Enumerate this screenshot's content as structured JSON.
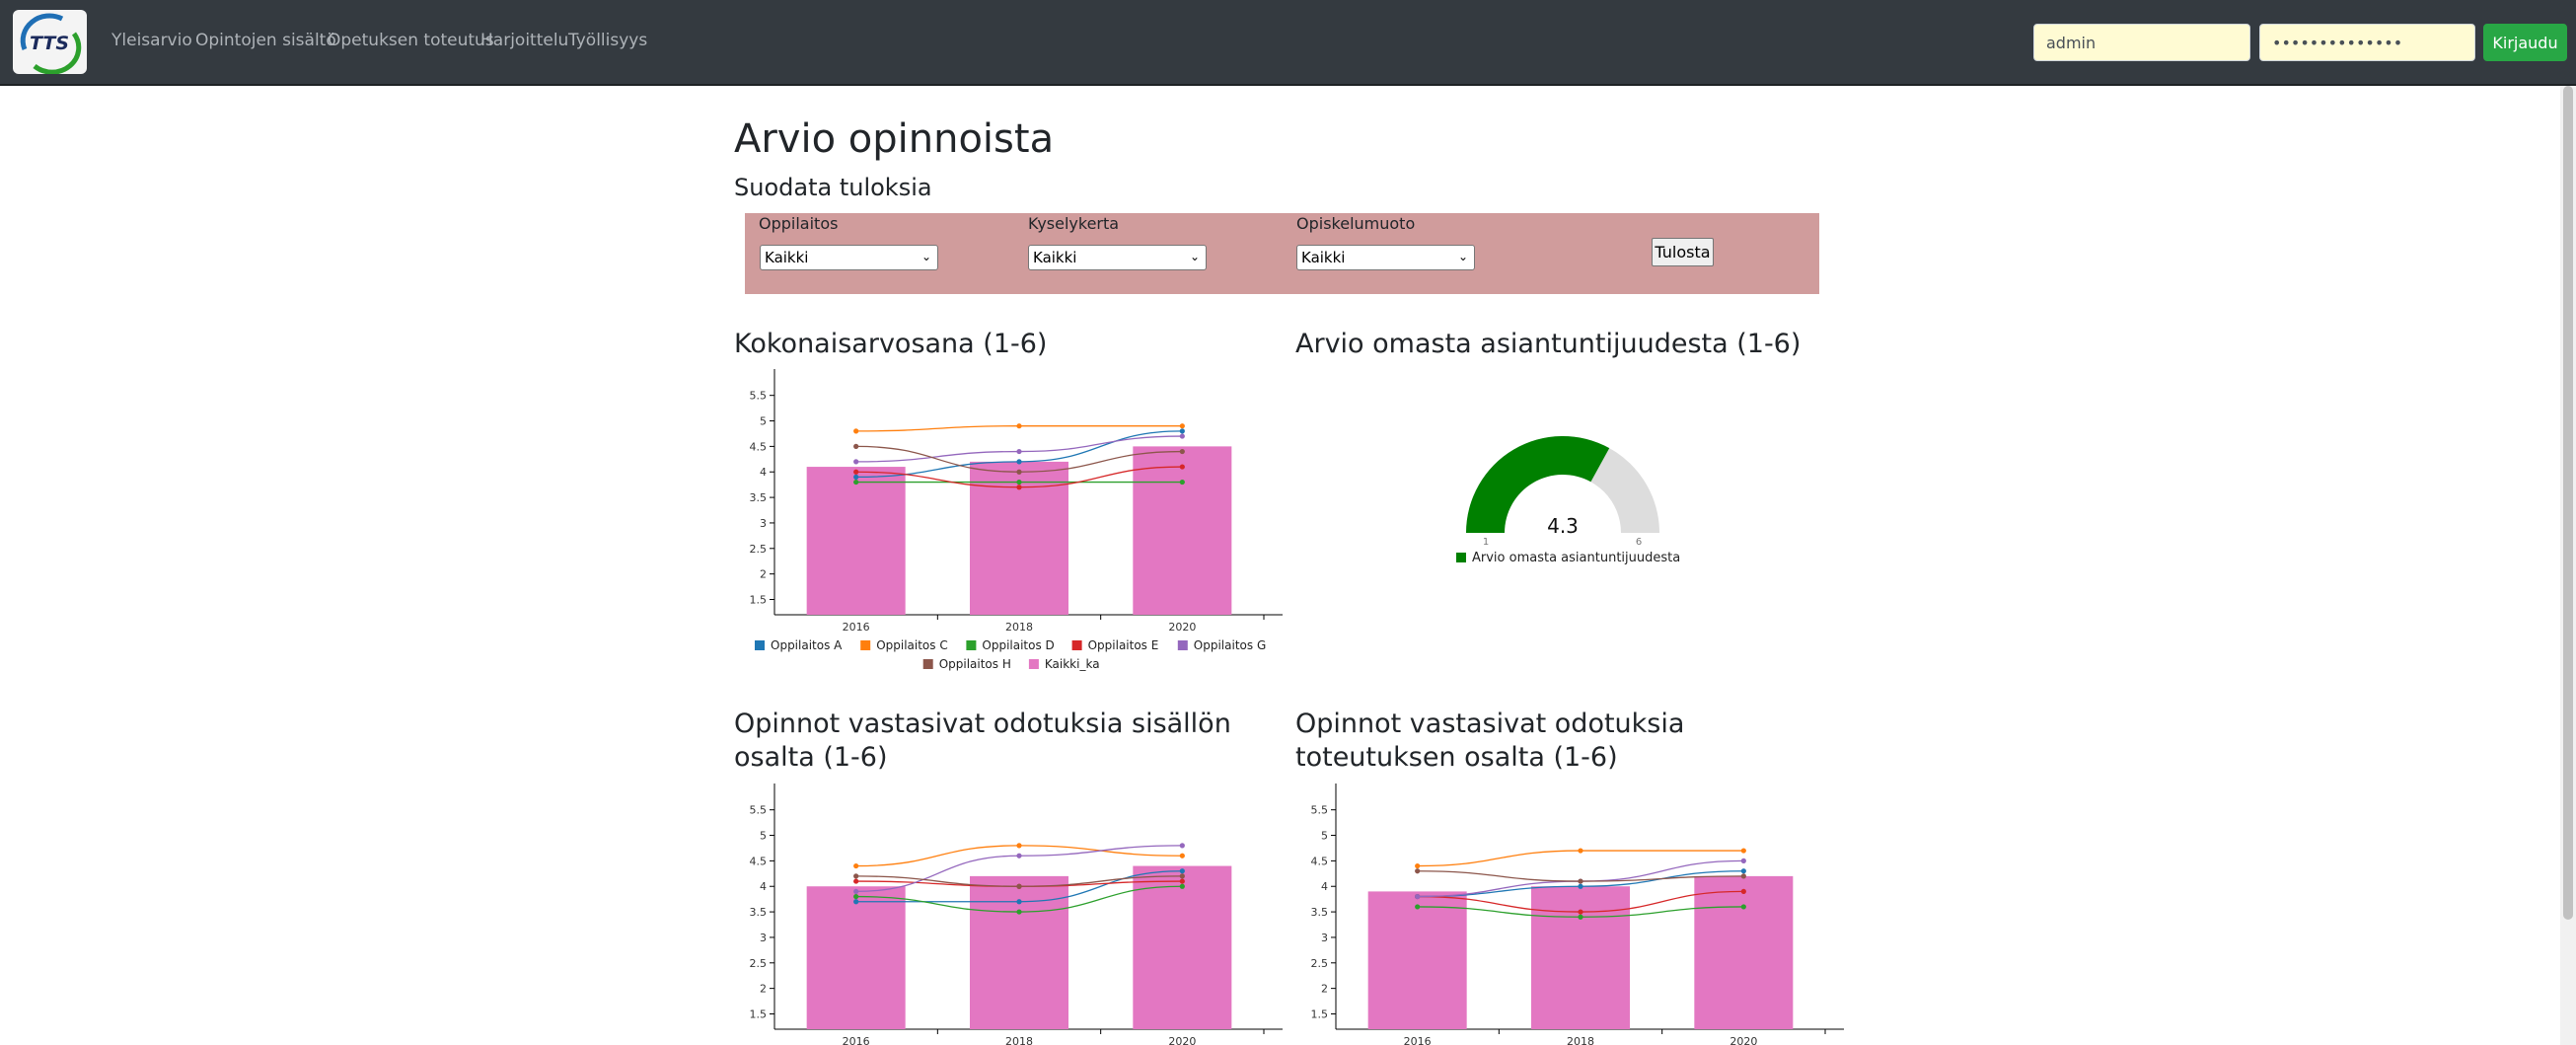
{
  "navbar": {
    "logo_text": "TTS",
    "links": [
      "Yleisarvio",
      "Opintojen sisältö",
      "Opetuksen toteutus",
      "Harjoittelu",
      "Työllisyys"
    ],
    "username_value": "admin",
    "password_value": "••••••••••••••",
    "login_label": "Kirjaudu"
  },
  "page": {
    "title": "Arvio opinnoista",
    "subtitle": "Suodata tuloksia"
  },
  "filters": {
    "oppilaitos_label": "Oppilaitos",
    "oppilaitos_value": "Kaikki",
    "kyselykerta_label": "Kyselykerta",
    "kyselykerta_value": "Kaikki",
    "opiskelumuoto_label": "Opiskelumuoto",
    "opiskelumuoto_value": "Kaikki",
    "print_label": "Tulosta"
  },
  "colors": {
    "bar": "#e377c2",
    "gauge_fill": "#008000",
    "gauge_bg": "#dddddd",
    "navbar": "#343a40",
    "filter_panel": "#d09c9c",
    "login_button": "#28a745"
  },
  "sections": {
    "overall_title": "Kokonaisarvosana (1-6)",
    "expertise_title": "Arvio omasta asiantuntijuudesta (1-6)",
    "content_title": "Opinnot vastasivat odotuksia sisällön osalta (1-6)",
    "teaching_title": "Opinnot vastasivat odotuksia toteutuksen osalta (1-6)"
  },
  "gauge": {
    "value": 4.3,
    "min": 1,
    "max": 6,
    "legend": "Arvio omasta asiantuntijuudesta"
  },
  "chart_data": [
    {
      "type": "bar",
      "title": "Kokonaisarvosana (1-6)",
      "categories": [
        "2016",
        "2018",
        "2020"
      ],
      "ylim": [
        1.2,
        5.9
      ],
      "yticks": [
        "1.5",
        "2",
        "2.5",
        "3",
        "3.5",
        "4",
        "4.5",
        "5",
        "5.5"
      ],
      "bar_series": {
        "name": "Kaikki_ka",
        "color": "#e377c2",
        "values": [
          4.1,
          4.2,
          4.5
        ]
      },
      "line_series": [
        {
          "name": "Oppilaitos A",
          "color": "#1f77b4",
          "values": [
            3.9,
            4.2,
            4.8
          ]
        },
        {
          "name": "Oppilaitos C",
          "color": "#ff7f0e",
          "values": [
            4.8,
            4.9,
            4.9
          ]
        },
        {
          "name": "Oppilaitos D",
          "color": "#2ca02c",
          "values": [
            3.8,
            3.8,
            3.8
          ]
        },
        {
          "name": "Oppilaitos E",
          "color": "#d62728",
          "values": [
            4.0,
            3.7,
            4.1
          ]
        },
        {
          "name": "Oppilaitos G",
          "color": "#9467bd",
          "values": [
            4.2,
            4.4,
            4.7
          ]
        },
        {
          "name": "Oppilaitos H",
          "color": "#8c564b",
          "values": [
            4.5,
            4.0,
            4.4
          ]
        }
      ],
      "legend_rows": [
        [
          "Oppilaitos A",
          "Oppilaitos C",
          "Oppilaitos D",
          "Oppilaitos E",
          "Oppilaitos G"
        ],
        [
          "Oppilaitos H",
          "Kaikki_ka"
        ]
      ]
    },
    {
      "type": "bar",
      "title": "Opinnot vastasivat odotuksia sisällön osalta (1-6)",
      "categories": [
        "2016",
        "2018",
        "2020"
      ],
      "ylim": [
        1.2,
        5.9
      ],
      "yticks": [
        "1.5",
        "2",
        "2.5",
        "3",
        "3.5",
        "4",
        "4.5",
        "5",
        "5.5"
      ],
      "bar_series": {
        "name": "Kaikki_ka",
        "color": "#e377c2",
        "values": [
          4.0,
          4.2,
          4.4
        ]
      },
      "line_series": [
        {
          "name": "Oppilaitos A",
          "color": "#1f77b4",
          "values": [
            3.7,
            3.7,
            4.3
          ]
        },
        {
          "name": "Oppilaitos C",
          "color": "#ff7f0e",
          "values": [
            4.4,
            4.8,
            4.6
          ]
        },
        {
          "name": "Oppilaitos D",
          "color": "#2ca02c",
          "values": [
            3.8,
            3.5,
            4.0
          ]
        },
        {
          "name": "Oppilaitos E",
          "color": "#d62728",
          "values": [
            4.1,
            4.0,
            4.1
          ]
        },
        {
          "name": "Oppilaitos G",
          "color": "#9467bd",
          "values": [
            3.9,
            4.6,
            4.8
          ]
        },
        {
          "name": "Oppilaitos H",
          "color": "#8c564b",
          "values": [
            4.2,
            4.0,
            4.2
          ]
        }
      ]
    },
    {
      "type": "bar",
      "title": "Opinnot vastasivat odotuksia toteutuksen osalta (1-6)",
      "categories": [
        "2016",
        "2018",
        "2020"
      ],
      "ylim": [
        1.2,
        5.9
      ],
      "yticks": [
        "1.5",
        "2",
        "2.5",
        "3",
        "3.5",
        "4",
        "4.5",
        "5",
        "5.5"
      ],
      "bar_series": {
        "name": "Kaikki_ka",
        "color": "#e377c2",
        "values": [
          3.9,
          4.0,
          4.2
        ]
      },
      "line_series": [
        {
          "name": "Oppilaitos A",
          "color": "#1f77b4",
          "values": [
            3.8,
            4.0,
            4.3
          ]
        },
        {
          "name": "Oppilaitos C",
          "color": "#ff7f0e",
          "values": [
            4.4,
            4.7,
            4.7
          ]
        },
        {
          "name": "Oppilaitos D",
          "color": "#2ca02c",
          "values": [
            3.6,
            3.4,
            3.6
          ]
        },
        {
          "name": "Oppilaitos E",
          "color": "#d62728",
          "values": [
            3.8,
            3.5,
            3.9
          ]
        },
        {
          "name": "Oppilaitos G",
          "color": "#9467bd",
          "values": [
            3.8,
            4.1,
            4.5
          ]
        },
        {
          "name": "Oppilaitos H",
          "color": "#8c564b",
          "values": [
            4.3,
            4.1,
            4.2
          ]
        }
      ]
    }
  ]
}
